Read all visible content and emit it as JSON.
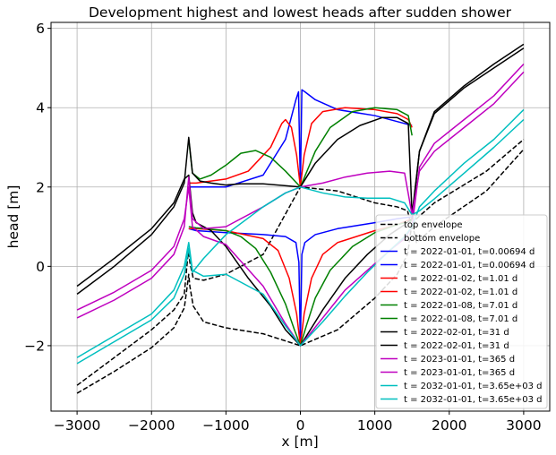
{
  "chart_data": {
    "type": "line",
    "title": "Development highest and lowest heads after sudden shower",
    "xlabel": "x [m]",
    "ylabel": "head [m]",
    "xlim": [
      -3350,
      3350
    ],
    "ylim": [
      -3.65,
      6.15
    ],
    "grid": true,
    "legend_position": "lower-right",
    "x_ticks": [
      -3000,
      -2000,
      -1000,
      0,
      1000,
      2000,
      3000
    ],
    "x_tick_labels": [
      "−3000",
      "−2000",
      "−1000",
      "0",
      "1000",
      "2000",
      "3000"
    ],
    "y_ticks": [
      -2,
      0,
      2,
      4,
      6
    ],
    "y_tick_labels": [
      "−2",
      "0",
      "2",
      "4",
      "6"
    ],
    "series": [
      {
        "name": "top envelope",
        "color": "#000000",
        "dash": true,
        "points": [
          [
            -3000,
            -3.0
          ],
          [
            -2500,
            -2.3
          ],
          [
            -2000,
            -1.6
          ],
          [
            -1700,
            -1.1
          ],
          [
            -1560,
            -0.7
          ],
          [
            -1515,
            0.2
          ],
          [
            -1500,
            0.45
          ],
          [
            -1485,
            0.1
          ],
          [
            -1440,
            -0.3
          ],
          [
            -1300,
            -0.35
          ],
          [
            -1000,
            -0.2
          ],
          [
            -500,
            0.3
          ],
          [
            0,
            2.0
          ],
          [
            500,
            1.9
          ],
          [
            1000,
            1.6
          ],
          [
            1300,
            1.5
          ],
          [
            1440,
            1.4
          ],
          [
            1500,
            0.95
          ],
          [
            1560,
            1.2
          ],
          [
            1800,
            1.6
          ],
          [
            2500,
            2.4
          ],
          [
            3000,
            3.2
          ]
        ]
      },
      {
        "name": "bottom envelope",
        "color": "#000000",
        "dash": true,
        "points": [
          [
            -3000,
            -3.2
          ],
          [
            -2500,
            -2.65
          ],
          [
            -2000,
            -2.05
          ],
          [
            -1700,
            -1.55
          ],
          [
            -1560,
            -1.05
          ],
          [
            -1520,
            -0.5
          ],
          [
            -1500,
            -0.2
          ],
          [
            -1485,
            -0.5
          ],
          [
            -1440,
            -1.0
          ],
          [
            -1300,
            -1.4
          ],
          [
            -1000,
            -1.55
          ],
          [
            -500,
            -1.7
          ],
          [
            0,
            -2.0
          ],
          [
            500,
            -1.6
          ],
          [
            1000,
            -0.8
          ],
          [
            1300,
            -0.2
          ],
          [
            1440,
            0.3
          ],
          [
            1500,
            1.1
          ],
          [
            1560,
            0.6
          ],
          [
            1800,
            1.0
          ],
          [
            2500,
            1.9
          ],
          [
            3000,
            2.95
          ]
        ]
      },
      {
        "name": "t = 2022-01-01, t=0.00694 d",
        "color": "#0000ff",
        "points": [
          [
            -1500,
            0.95
          ],
          [
            -1400,
            0.9
          ],
          [
            -1000,
            0.85
          ],
          [
            -500,
            0.8
          ],
          [
            -200,
            0.75
          ],
          [
            -60,
            0.6
          ],
          [
            -20,
            0.1
          ],
          [
            0,
            -2.0
          ],
          [
            20,
            0.3
          ],
          [
            60,
            0.6
          ],
          [
            200,
            0.8
          ],
          [
            500,
            0.95
          ],
          [
            1000,
            1.1
          ],
          [
            1300,
            1.2
          ],
          [
            1500,
            1.25
          ]
        ]
      },
      {
        "name": "t = 2022-01-01, t=0.00694 d",
        "color": "#0000ff",
        "points": [
          [
            -1500,
            2.0
          ],
          [
            -1400,
            2.0
          ],
          [
            -1000,
            2.0
          ],
          [
            -500,
            2.3
          ],
          [
            -200,
            3.2
          ],
          [
            -60,
            4.2
          ],
          [
            -25,
            4.4
          ],
          [
            0,
            2.0
          ],
          [
            20,
            4.45
          ],
          [
            60,
            4.4
          ],
          [
            200,
            4.2
          ],
          [
            500,
            3.95
          ],
          [
            1000,
            3.8
          ],
          [
            1300,
            3.65
          ],
          [
            1500,
            3.55
          ]
        ]
      },
      {
        "name": "t = 2022-01-02, t=1.01 d",
        "color": "#ff0000",
        "points": [
          [
            -1500,
            0.95
          ],
          [
            -1400,
            0.95
          ],
          [
            -1000,
            0.9
          ],
          [
            -500,
            0.7
          ],
          [
            -300,
            0.4
          ],
          [
            -150,
            -0.3
          ],
          [
            -50,
            -1.2
          ],
          [
            0,
            -2.0
          ],
          [
            50,
            -1.2
          ],
          [
            150,
            -0.3
          ],
          [
            300,
            0.3
          ],
          [
            500,
            0.6
          ],
          [
            1000,
            0.9
          ],
          [
            1300,
            1.05
          ],
          [
            1500,
            1.2
          ]
        ]
      },
      {
        "name": "t = 2022-01-02, t=1.01 d",
        "color": "#ff0000",
        "points": [
          [
            -1500,
            2.1
          ],
          [
            -1400,
            2.1
          ],
          [
            -1000,
            2.2
          ],
          [
            -700,
            2.4
          ],
          [
            -400,
            3.0
          ],
          [
            -250,
            3.6
          ],
          [
            -200,
            3.7
          ],
          [
            -120,
            3.5
          ],
          [
            -50,
            2.8
          ],
          [
            0,
            2.0
          ],
          [
            50,
            2.8
          ],
          [
            150,
            3.6
          ],
          [
            300,
            3.9
          ],
          [
            600,
            4.0
          ],
          [
            1000,
            3.95
          ],
          [
            1300,
            3.85
          ],
          [
            1450,
            3.7
          ],
          [
            1500,
            3.5
          ]
        ]
      },
      {
        "name": "t = 2022-01-08, t=7.01 d",
        "color": "#008000",
        "points": [
          [
            -1500,
            1.0
          ],
          [
            -1400,
            0.97
          ],
          [
            -1000,
            0.9
          ],
          [
            -800,
            0.75
          ],
          [
            -600,
            0.45
          ],
          [
            -400,
            -0.15
          ],
          [
            -200,
            -0.95
          ],
          [
            -80,
            -1.6
          ],
          [
            0,
            -2.0
          ],
          [
            80,
            -1.5
          ],
          [
            200,
            -0.8
          ],
          [
            400,
            -0.1
          ],
          [
            700,
            0.5
          ],
          [
            1000,
            0.85
          ],
          [
            1300,
            1.05
          ],
          [
            1500,
            1.15
          ]
        ]
      },
      {
        "name": "t = 2022-01-08, t=7.01 d",
        "color": "#008000",
        "points": [
          [
            -1500,
            3.2
          ],
          [
            -1450,
            2.35
          ],
          [
            -1350,
            2.2
          ],
          [
            -1200,
            2.3
          ],
          [
            -1000,
            2.55
          ],
          [
            -800,
            2.85
          ],
          [
            -600,
            2.92
          ],
          [
            -400,
            2.75
          ],
          [
            -200,
            2.4
          ],
          [
            0,
            2.0
          ],
          [
            200,
            2.9
          ],
          [
            400,
            3.5
          ],
          [
            700,
            3.9
          ],
          [
            1000,
            4.0
          ],
          [
            1300,
            3.95
          ],
          [
            1450,
            3.8
          ],
          [
            1500,
            3.3
          ]
        ]
      },
      {
        "name": "t = 2022-02-01, t=31 d",
        "color": "#000000",
        "points": [
          [
            -3000,
            -0.5
          ],
          [
            -2500,
            0.2
          ],
          [
            -2000,
            0.95
          ],
          [
            -1700,
            1.6
          ],
          [
            -1560,
            2.2
          ],
          [
            -1500,
            2.3
          ],
          [
            -1450,
            1.35
          ],
          [
            -1400,
            1.1
          ],
          [
            -1200,
            0.9
          ],
          [
            -1000,
            0.5
          ],
          [
            -700,
            -0.3
          ],
          [
            -400,
            -1.0
          ],
          [
            -200,
            -1.6
          ],
          [
            0,
            -2.0
          ],
          [
            300,
            -1.1
          ],
          [
            600,
            -0.3
          ],
          [
            900,
            0.3
          ],
          [
            1200,
            0.8
          ],
          [
            1400,
            1.05
          ],
          [
            1500,
            1.2
          ],
          [
            1600,
            2.9
          ],
          [
            1800,
            3.9
          ],
          [
            2200,
            4.55
          ],
          [
            2600,
            5.1
          ],
          [
            3000,
            5.6
          ]
        ]
      },
      {
        "name": "t = 2022-02-01, t=31 d",
        "color": "#000000",
        "points": [
          [
            -3000,
            -0.7
          ],
          [
            -2500,
            0.0
          ],
          [
            -2000,
            0.8
          ],
          [
            -1700,
            1.5
          ],
          [
            -1560,
            2.1
          ],
          [
            -1500,
            3.25
          ],
          [
            -1450,
            2.35
          ],
          [
            -1350,
            2.15
          ],
          [
            -1200,
            2.1
          ],
          [
            -1000,
            2.05
          ],
          [
            -800,
            2.08
          ],
          [
            -500,
            2.08
          ],
          [
            -300,
            2.05
          ],
          [
            0,
            2.0
          ],
          [
            200,
            2.6
          ],
          [
            500,
            3.2
          ],
          [
            800,
            3.55
          ],
          [
            1100,
            3.75
          ],
          [
            1300,
            3.75
          ],
          [
            1450,
            3.6
          ],
          [
            1500,
            1.3
          ],
          [
            1600,
            2.9
          ],
          [
            1800,
            3.85
          ],
          [
            2200,
            4.5
          ],
          [
            2600,
            5.0
          ],
          [
            3000,
            5.5
          ]
        ]
      },
      {
        "name": "t = 2023-01-01, t=365 d",
        "color": "#bf00bf",
        "points": [
          [
            -3000,
            -1.1
          ],
          [
            -2500,
            -0.65
          ],
          [
            -2000,
            -0.1
          ],
          [
            -1700,
            0.5
          ],
          [
            -1560,
            1.2
          ],
          [
            -1500,
            2.0
          ],
          [
            -1450,
            1.0
          ],
          [
            -1300,
            0.75
          ],
          [
            -1000,
            0.55
          ],
          [
            -500,
            -0.5
          ],
          [
            -200,
            -1.45
          ],
          [
            0,
            -2.0
          ],
          [
            300,
            -1.3
          ],
          [
            600,
            -0.6
          ],
          [
            900,
            -0.1
          ],
          [
            1200,
            0.4
          ],
          [
            1400,
            0.7
          ],
          [
            1500,
            1.0
          ],
          [
            1600,
            2.5
          ],
          [
            1800,
            3.1
          ],
          [
            2200,
            3.7
          ],
          [
            2600,
            4.3
          ],
          [
            3000,
            5.1
          ]
        ]
      },
      {
        "name": "t = 2023-01-01, t=365 d",
        "color": "#bf00bf",
        "points": [
          [
            -3000,
            -1.3
          ],
          [
            -2500,
            -0.85
          ],
          [
            -2000,
            -0.3
          ],
          [
            -1700,
            0.3
          ],
          [
            -1560,
            1.0
          ],
          [
            -1500,
            2.25
          ],
          [
            -1450,
            1.2
          ],
          [
            -1300,
            0.95
          ],
          [
            -1000,
            1.0
          ],
          [
            -500,
            1.5
          ],
          [
            -200,
            1.85
          ],
          [
            0,
            2.0
          ],
          [
            300,
            2.1
          ],
          [
            600,
            2.25
          ],
          [
            900,
            2.35
          ],
          [
            1200,
            2.4
          ],
          [
            1400,
            2.35
          ],
          [
            1500,
            1.3
          ],
          [
            1600,
            2.4
          ],
          [
            1800,
            2.9
          ],
          [
            2200,
            3.5
          ],
          [
            2600,
            4.1
          ],
          [
            3000,
            4.9
          ]
        ]
      },
      {
        "name": "t = 2032-01-01, t=3.65e+03 d",
        "color": "#00bfbf",
        "points": [
          [
            -3000,
            -2.3
          ],
          [
            -2500,
            -1.75
          ],
          [
            -2000,
            -1.2
          ],
          [
            -1700,
            -0.6
          ],
          [
            -1560,
            0.0
          ],
          [
            -1500,
            0.6
          ],
          [
            -1450,
            -0.1
          ],
          [
            -1300,
            -0.25
          ],
          [
            -1000,
            -0.2
          ],
          [
            -500,
            -0.7
          ],
          [
            -200,
            -1.5
          ],
          [
            0,
            -2.0
          ],
          [
            300,
            -1.4
          ],
          [
            600,
            -0.75
          ],
          [
            900,
            -0.15
          ],
          [
            1200,
            0.4
          ],
          [
            1400,
            0.75
          ],
          [
            1500,
            1.0
          ],
          [
            1600,
            1.5
          ],
          [
            1800,
            1.9
          ],
          [
            2200,
            2.6
          ],
          [
            2600,
            3.2
          ],
          [
            3000,
            3.95
          ]
        ]
      },
      {
        "name": "t = 2032-01-01, t=3.65e+03 d",
        "color": "#00bfbf",
        "points": [
          [
            -3000,
            -2.45
          ],
          [
            -2500,
            -1.9
          ],
          [
            -2000,
            -1.35
          ],
          [
            -1700,
            -0.8
          ],
          [
            -1560,
            -0.2
          ],
          [
            -1500,
            0.45
          ],
          [
            -1450,
            -0.15
          ],
          [
            -1300,
            0.2
          ],
          [
            -1000,
            0.8
          ],
          [
            -500,
            1.5
          ],
          [
            -200,
            1.85
          ],
          [
            0,
            2.0
          ],
          [
            300,
            1.85
          ],
          [
            600,
            1.75
          ],
          [
            900,
            1.72
          ],
          [
            1200,
            1.72
          ],
          [
            1400,
            1.6
          ],
          [
            1500,
            1.3
          ],
          [
            1600,
            1.4
          ],
          [
            1800,
            1.7
          ],
          [
            2200,
            2.35
          ],
          [
            2600,
            3.0
          ],
          [
            3000,
            3.7
          ]
        ]
      }
    ]
  }
}
